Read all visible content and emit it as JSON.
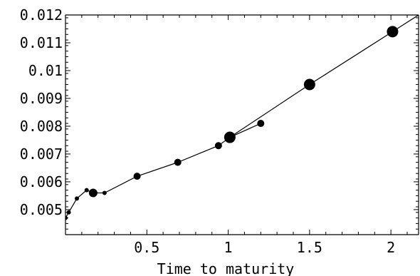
{
  "chart_data": {
    "type": "scatter",
    "title": "",
    "xlabel": "Time to maturity",
    "ylabel": "",
    "xlim": [
      0,
      2.17
    ],
    "ylim": [
      0.0041,
      0.012
    ],
    "grid": false,
    "x_ticks": [
      {
        "value": 0.5,
        "label": "0.5"
      },
      {
        "value": 1,
        "label": "1"
      },
      {
        "value": 1.5,
        "label": "1.5"
      },
      {
        "value": 2,
        "label": "2"
      }
    ],
    "y_ticks": [
      {
        "value": 0.005,
        "label": "0.005"
      },
      {
        "value": 0.006,
        "label": "0.006"
      },
      {
        "value": 0.007,
        "label": "0.007"
      },
      {
        "value": 0.008,
        "label": "0.008"
      },
      {
        "value": 0.009,
        "label": "0.009"
      },
      {
        "value": 0.01,
        "label": "0.01"
      },
      {
        "value": 0.011,
        "label": "0.011"
      },
      {
        "value": 0.012,
        "label": "0.012"
      }
    ],
    "series": [
      {
        "type": "line",
        "color": "#000000",
        "x": [
          0,
          0.02,
          0.07,
          0.13,
          0.17,
          0.24,
          0.44,
          0.69,
          0.94,
          1.01,
          1.2,
          1.01,
          1.5,
          2.01,
          2.17
        ],
        "y": [
          0.0047,
          0.0049,
          0.0054,
          0.0057,
          0.0056,
          0.0056,
          0.0062,
          0.0067,
          0.0073,
          0.0076,
          0.0081,
          0.0076,
          0.0095,
          0.0114,
          0.012
        ]
      },
      {
        "type": "scatter",
        "color": "#000000",
        "x": [
          0,
          0.02,
          0.07,
          0.13,
          0.17,
          0.24,
          0.44,
          0.69,
          0.94,
          1.01,
          1.2,
          1.5,
          2.01
        ],
        "y": [
          0.0047,
          0.0049,
          0.0054,
          0.0057,
          0.0056,
          0.0056,
          0.0062,
          0.0067,
          0.0073,
          0.0076,
          0.0081,
          0.0095,
          0.0114
        ],
        "sizes": [
          3,
          3,
          3,
          3,
          6,
          3,
          5,
          5,
          5,
          8,
          5,
          8,
          8
        ]
      }
    ]
  }
}
